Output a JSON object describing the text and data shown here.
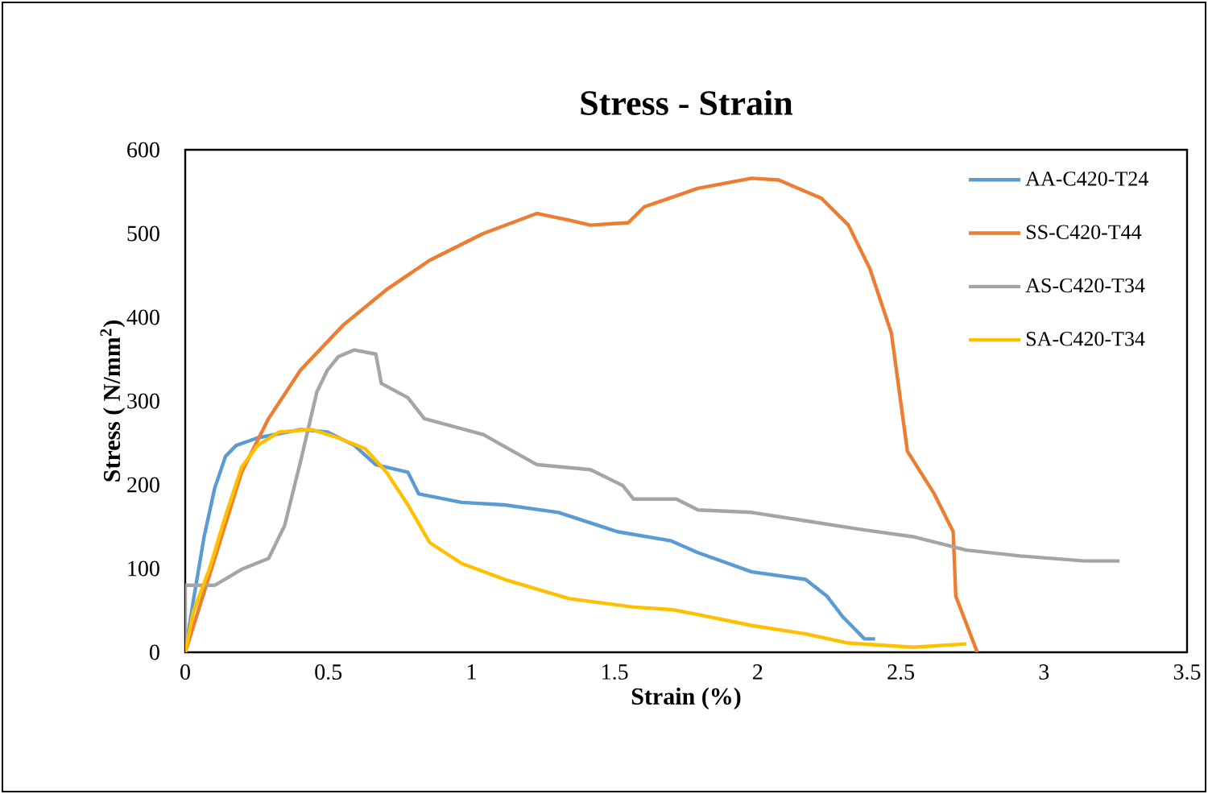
{
  "chart_data": {
    "type": "line",
    "title": "Stress - Strain",
    "xlabel": "Strain (%)",
    "ylabel": "Stress ( N/mm$^{2}$)",
    "xlim": [
      0,
      3.5
    ],
    "ylim": [
      0,
      600
    ],
    "xticks": [
      0,
      0.5,
      1,
      1.5,
      2,
      2.5,
      3,
      3.5
    ],
    "yticks": [
      0,
      100,
      200,
      300,
      400,
      500,
      600
    ],
    "grid": false,
    "legend": "top right",
    "marker": "none",
    "line_style": "solid",
    "series": [
      {
        "name": "AA-C420-T24",
        "color": "#5b9bd5",
        "x": [
          0,
          0.028,
          0.066,
          0.103,
          0.141,
          0.178,
          0.253,
          0.403,
          0.497,
          0.591,
          0.666,
          0.778,
          0.816,
          0.966,
          1.116,
          1.304,
          1.51,
          1.698,
          1.791,
          1.979,
          2.167,
          2.242,
          2.298,
          2.373,
          2.41
        ],
        "values": [
          0,
          61,
          138,
          196,
          234,
          247,
          256,
          266,
          263,
          247,
          224,
          215,
          189,
          179,
          176,
          167,
          144,
          133,
          119,
          96,
          87,
          67,
          42,
          16,
          16
        ]
      },
      {
        "name": "SS-C420-T44",
        "color": "#ed7d31",
        "x": [
          0,
          0.103,
          0.197,
          0.291,
          0.403,
          0.553,
          0.703,
          0.854,
          1.041,
          1.229,
          1.341,
          1.416,
          1.548,
          1.604,
          1.716,
          1.791,
          1.979,
          2.073,
          2.223,
          2.317,
          2.392,
          2.467,
          2.523,
          2.617,
          2.683,
          2.692,
          2.767
        ],
        "values": [
          0,
          112,
          215,
          279,
          337,
          391,
          433,
          468,
          500,
          524,
          516,
          510,
          513,
          532,
          545,
          554,
          566,
          564,
          542,
          510,
          458,
          381,
          240,
          189,
          144,
          67,
          0
        ]
      },
      {
        "name": "AS-C420-T34",
        "color": "#a5a5a5",
        "x": [
          0,
          0,
          0.103,
          0.197,
          0.291,
          0.347,
          0.403,
          0.46,
          0.497,
          0.535,
          0.591,
          0.666,
          0.685,
          0.778,
          0.835,
          1.041,
          1.229,
          1.416,
          1.529,
          1.566,
          1.716,
          1.791,
          1.979,
          2.167,
          2.354,
          2.542,
          2.729,
          2.917,
          3.142,
          3.264
        ],
        "values": [
          0,
          80,
          80,
          99,
          112,
          151,
          228,
          311,
          337,
          353,
          361,
          356,
          321,
          304,
          279,
          260,
          224,
          218,
          199,
          183,
          183,
          170,
          167,
          157,
          147,
          138,
          122,
          115,
          109,
          109
        ]
      },
      {
        "name": "SA-C420-T34",
        "color": "#ffc000",
        "x": [
          0,
          0.028,
          0.084,
          0.141,
          0.197,
          0.253,
          0.328,
          0.441,
          0.535,
          0.629,
          0.703,
          0.778,
          0.854,
          0.966,
          1.116,
          1.341,
          1.566,
          1.698,
          1.791,
          1.979,
          2.167,
          2.317,
          2.542,
          2.729
        ],
        "values": [
          0,
          48,
          99,
          163,
          221,
          247,
          263,
          266,
          256,
          243,
          215,
          176,
          131,
          106,
          87,
          64,
          54,
          51,
          45,
          32,
          22,
          11,
          6,
          10
        ]
      }
    ]
  }
}
